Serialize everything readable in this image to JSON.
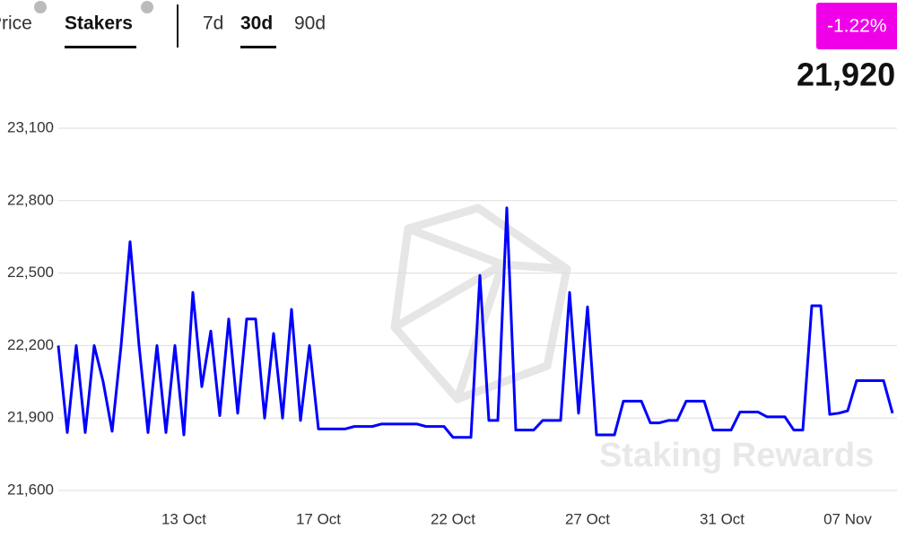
{
  "header": {
    "tabs": [
      "Price",
      "Stakers"
    ],
    "ranges": [
      "7d",
      "30d",
      "90d"
    ],
    "change": "-1.22%",
    "value": "21,920"
  },
  "watermark": "Staking Rewards",
  "chart_data": {
    "type": "line",
    "color": "#0000ff",
    "grid": true,
    "ylim": [
      21600,
      23100
    ],
    "yticks": [
      {
        "value": 21600,
        "label": "21,600"
      },
      {
        "value": 21900,
        "label": "21,900"
      },
      {
        "value": 22200,
        "label": "22,200"
      },
      {
        "value": 22500,
        "label": "22,500"
      },
      {
        "value": 22800,
        "label": "22,800"
      },
      {
        "value": 23100,
        "label": "23,100"
      }
    ],
    "categories": [
      null,
      null,
      null,
      null,
      null,
      null,
      null,
      null,
      null,
      null,
      null,
      null,
      null,
      null,
      "13 Oct",
      null,
      null,
      null,
      null,
      null,
      null,
      null,
      null,
      null,
      null,
      null,
      null,
      null,
      null,
      "17 Oct",
      null,
      null,
      null,
      null,
      null,
      null,
      null,
      null,
      null,
      null,
      null,
      null,
      null,
      null,
      "22 Oct",
      null,
      null,
      null,
      null,
      null,
      null,
      null,
      null,
      null,
      null,
      null,
      null,
      null,
      null,
      "27 Oct",
      null,
      null,
      null,
      null,
      null,
      null,
      null,
      null,
      null,
      null,
      null,
      null,
      null,
      null,
      "31 Oct",
      null,
      null,
      null,
      null,
      null,
      null,
      null,
      null,
      null,
      null,
      null,
      null,
      null,
      "07 Nov",
      null,
      null,
      null,
      null,
      null
    ],
    "values": [
      22200,
      21840,
      22200,
      21840,
      22200,
      22050,
      21845,
      22200,
      22630,
      22200,
      21840,
      22200,
      21840,
      22200,
      21830,
      22420,
      22030,
      22260,
      21910,
      22310,
      21920,
      22310,
      22310,
      21900,
      22250,
      21900,
      22350,
      21890,
      22200,
      21855,
      21855,
      21855,
      21855,
      21865,
      21865,
      21865,
      21875,
      21875,
      21875,
      21875,
      21875,
      21865,
      21865,
      21865,
      21820,
      21820,
      21820,
      22490,
      21890,
      21890,
      22770,
      21850,
      21850,
      21850,
      21890,
      21890,
      21890,
      22420,
      21920,
      22360,
      21830,
      21830,
      21830,
      21970,
      21970,
      21970,
      21880,
      21880,
      21890,
      21890,
      21970,
      21970,
      21970,
      21850,
      21850,
      21850,
      21925,
      21925,
      21925,
      21905,
      21905,
      21905,
      21850,
      21850,
      22365,
      22365,
      21915,
      21920,
      21930,
      22055,
      22055,
      22055,
      22055,
      21920
    ]
  }
}
